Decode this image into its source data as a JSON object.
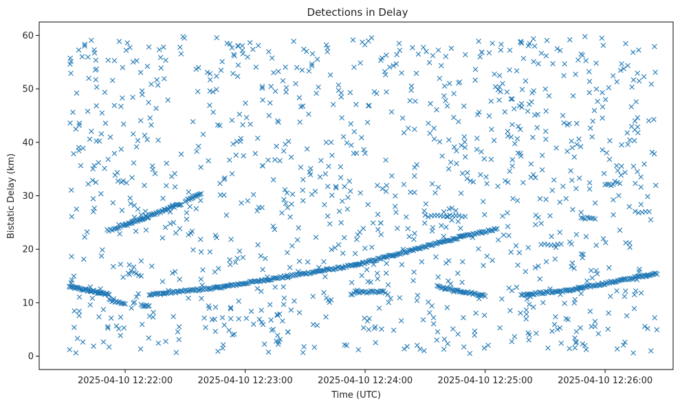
{
  "chart_data": {
    "type": "scatter",
    "title": "Detections in Delay",
    "xlabel": "Time (UTC)",
    "ylabel": "Bistatic Delay (km)",
    "marker": "x",
    "color": "#1f77b4",
    "grid": false,
    "legend": "none",
    "xlim": [
      "2025-04-10 12:21:17",
      "2025-04-10 12:26:34"
    ],
    "ylim": [
      -2.5,
      62.5
    ],
    "x_ticks": [
      "2025-04-10 12:22:00",
      "2025-04-10 12:23:00",
      "2025-04-10 12:24:00",
      "2025-04-10 12:25:00",
      "2025-04-10 12:26:00"
    ],
    "y_ticks": [
      0,
      10,
      20,
      30,
      40,
      50,
      60
    ],
    "x_range": [
      "2025-04-10 12:21:32",
      "2025-04-10 12:26:26"
    ],
    "series": [
      {
        "tracks": [
          {
            "start": "2025-04-10 12:21:32",
            "end": "2025-04-10 12:21:52",
            "y_start": 13.0,
            "y_end": 11.5,
            "count": 45
          },
          {
            "start": "2025-04-10 12:21:52",
            "end": "2025-04-10 12:22:00",
            "y_start": 10.5,
            "y_end": 9.8,
            "count": 12
          },
          {
            "start": "2025-04-10 12:22:08",
            "end": "2025-04-10 12:22:12",
            "y_start": 9.5,
            "y_end": 9.5,
            "count": 8
          },
          {
            "start": "2025-04-10 12:22:12",
            "end": "2025-04-10 12:22:46",
            "y_start": 11.5,
            "y_end": 12.8,
            "count": 55
          },
          {
            "start": "2025-04-10 12:22:46",
            "end": "2025-04-10 12:23:55",
            "y_start": 12.8,
            "y_end": 17.0,
            "count": 110
          },
          {
            "start": "2025-04-10 12:23:55",
            "end": "2025-04-10 12:24:48",
            "y_start": 17.0,
            "y_end": 22.3,
            "count": 90
          },
          {
            "start": "2025-04-10 12:24:48",
            "end": "2025-04-10 12:25:06",
            "y_start": 22.3,
            "y_end": 23.8,
            "count": 25
          },
          {
            "start": "2025-04-10 12:24:36",
            "end": "2025-04-10 12:25:00",
            "y_start": 13.0,
            "y_end": 11.3,
            "count": 40
          },
          {
            "start": "2025-04-10 12:25:18",
            "end": "2025-04-10 12:25:42",
            "y_start": 11.5,
            "y_end": 12.3,
            "count": 38
          },
          {
            "start": "2025-04-10 12:25:42",
            "end": "2025-04-10 12:26:26",
            "y_start": 12.3,
            "y_end": 15.5,
            "count": 75
          },
          {
            "start": "2025-04-10 12:21:51",
            "end": "2025-04-10 12:22:00",
            "y_start": 23.5,
            "y_end": 24.5,
            "count": 12
          },
          {
            "start": "2025-04-10 12:22:00",
            "end": "2025-04-10 12:22:28",
            "y_start": 24.5,
            "y_end": 28.5,
            "count": 50
          },
          {
            "start": "2025-04-10 12:22:30",
            "end": "2025-04-10 12:22:38",
            "y_start": 29.0,
            "y_end": 30.5,
            "count": 14
          },
          {
            "start": "2025-04-10 12:23:55",
            "end": "2025-04-10 12:24:10",
            "y_start": 12.0,
            "y_end": 12.0,
            "count": 22
          },
          {
            "start": "2025-04-10 12:24:30",
            "end": "2025-04-10 12:24:50",
            "y_start": 26.2,
            "y_end": 26.2,
            "count": 14
          },
          {
            "start": "2025-04-10 12:25:28",
            "end": "2025-04-10 12:25:38",
            "y_start": 20.8,
            "y_end": 20.8,
            "count": 7
          },
          {
            "start": "2025-04-10 12:25:48",
            "end": "2025-04-10 12:25:55",
            "y_start": 25.8,
            "y_end": 25.8,
            "count": 8
          },
          {
            "start": "2025-04-10 12:26:00",
            "end": "2025-04-10 12:26:04",
            "y_start": 32.0,
            "y_end": 32.0,
            "count": 5
          },
          {
            "start": "2025-04-10 12:26:15",
            "end": "2025-04-10 12:26:22",
            "y_start": 27.0,
            "y_end": 27.0,
            "count": 5
          }
        ],
        "scattered_points": {
          "x_range": [
            "2025-04-10 12:21:32",
            "2025-04-10 12:26:26"
          ],
          "y_range": [
            0.5,
            59.8
          ],
          "count": 1100
        }
      }
    ]
  }
}
